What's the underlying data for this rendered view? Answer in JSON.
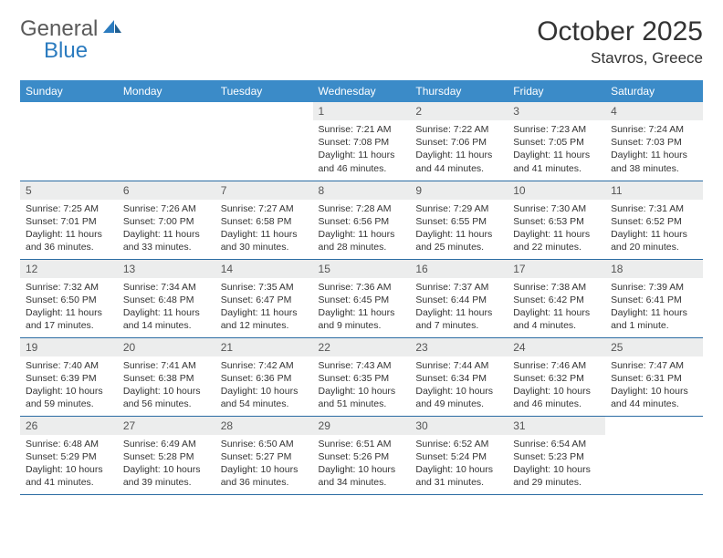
{
  "brand": {
    "name_a": "General",
    "name_b": "Blue"
  },
  "title": "October 2025",
  "location": "Stavros, Greece",
  "colors": {
    "header_bg": "#3b8bc8",
    "header_text": "#ffffff",
    "daynum_bg": "#eceded",
    "row_border": "#2b6ca3",
    "logo_gray": "#5a5a5a",
    "logo_blue": "#2b7bbf"
  },
  "day_headers": [
    "Sunday",
    "Monday",
    "Tuesday",
    "Wednesday",
    "Thursday",
    "Friday",
    "Saturday"
  ],
  "weeks": [
    [
      null,
      null,
      null,
      {
        "n": "1",
        "sr": "7:21 AM",
        "ss": "7:08 PM",
        "dl": "11 hours and 46 minutes."
      },
      {
        "n": "2",
        "sr": "7:22 AM",
        "ss": "7:06 PM",
        "dl": "11 hours and 44 minutes."
      },
      {
        "n": "3",
        "sr": "7:23 AM",
        "ss": "7:05 PM",
        "dl": "11 hours and 41 minutes."
      },
      {
        "n": "4",
        "sr": "7:24 AM",
        "ss": "7:03 PM",
        "dl": "11 hours and 38 minutes."
      }
    ],
    [
      {
        "n": "5",
        "sr": "7:25 AM",
        "ss": "7:01 PM",
        "dl": "11 hours and 36 minutes."
      },
      {
        "n": "6",
        "sr": "7:26 AM",
        "ss": "7:00 PM",
        "dl": "11 hours and 33 minutes."
      },
      {
        "n": "7",
        "sr": "7:27 AM",
        "ss": "6:58 PM",
        "dl": "11 hours and 30 minutes."
      },
      {
        "n": "8",
        "sr": "7:28 AM",
        "ss": "6:56 PM",
        "dl": "11 hours and 28 minutes."
      },
      {
        "n": "9",
        "sr": "7:29 AM",
        "ss": "6:55 PM",
        "dl": "11 hours and 25 minutes."
      },
      {
        "n": "10",
        "sr": "7:30 AM",
        "ss": "6:53 PM",
        "dl": "11 hours and 22 minutes."
      },
      {
        "n": "11",
        "sr": "7:31 AM",
        "ss": "6:52 PM",
        "dl": "11 hours and 20 minutes."
      }
    ],
    [
      {
        "n": "12",
        "sr": "7:32 AM",
        "ss": "6:50 PM",
        "dl": "11 hours and 17 minutes."
      },
      {
        "n": "13",
        "sr": "7:34 AM",
        "ss": "6:48 PM",
        "dl": "11 hours and 14 minutes."
      },
      {
        "n": "14",
        "sr": "7:35 AM",
        "ss": "6:47 PM",
        "dl": "11 hours and 12 minutes."
      },
      {
        "n": "15",
        "sr": "7:36 AM",
        "ss": "6:45 PM",
        "dl": "11 hours and 9 minutes."
      },
      {
        "n": "16",
        "sr": "7:37 AM",
        "ss": "6:44 PM",
        "dl": "11 hours and 7 minutes."
      },
      {
        "n": "17",
        "sr": "7:38 AM",
        "ss": "6:42 PM",
        "dl": "11 hours and 4 minutes."
      },
      {
        "n": "18",
        "sr": "7:39 AM",
        "ss": "6:41 PM",
        "dl": "11 hours and 1 minute."
      }
    ],
    [
      {
        "n": "19",
        "sr": "7:40 AM",
        "ss": "6:39 PM",
        "dl": "10 hours and 59 minutes."
      },
      {
        "n": "20",
        "sr": "7:41 AM",
        "ss": "6:38 PM",
        "dl": "10 hours and 56 minutes."
      },
      {
        "n": "21",
        "sr": "7:42 AM",
        "ss": "6:36 PM",
        "dl": "10 hours and 54 minutes."
      },
      {
        "n": "22",
        "sr": "7:43 AM",
        "ss": "6:35 PM",
        "dl": "10 hours and 51 minutes."
      },
      {
        "n": "23",
        "sr": "7:44 AM",
        "ss": "6:34 PM",
        "dl": "10 hours and 49 minutes."
      },
      {
        "n": "24",
        "sr": "7:46 AM",
        "ss": "6:32 PM",
        "dl": "10 hours and 46 minutes."
      },
      {
        "n": "25",
        "sr": "7:47 AM",
        "ss": "6:31 PM",
        "dl": "10 hours and 44 minutes."
      }
    ],
    [
      {
        "n": "26",
        "sr": "6:48 AM",
        "ss": "5:29 PM",
        "dl": "10 hours and 41 minutes."
      },
      {
        "n": "27",
        "sr": "6:49 AM",
        "ss": "5:28 PM",
        "dl": "10 hours and 39 minutes."
      },
      {
        "n": "28",
        "sr": "6:50 AM",
        "ss": "5:27 PM",
        "dl": "10 hours and 36 minutes."
      },
      {
        "n": "29",
        "sr": "6:51 AM",
        "ss": "5:26 PM",
        "dl": "10 hours and 34 minutes."
      },
      {
        "n": "30",
        "sr": "6:52 AM",
        "ss": "5:24 PM",
        "dl": "10 hours and 31 minutes."
      },
      {
        "n": "31",
        "sr": "6:54 AM",
        "ss": "5:23 PM",
        "dl": "10 hours and 29 minutes."
      },
      null
    ]
  ],
  "labels": {
    "sunrise": "Sunrise:",
    "sunset": "Sunset:",
    "daylight": "Daylight:"
  }
}
